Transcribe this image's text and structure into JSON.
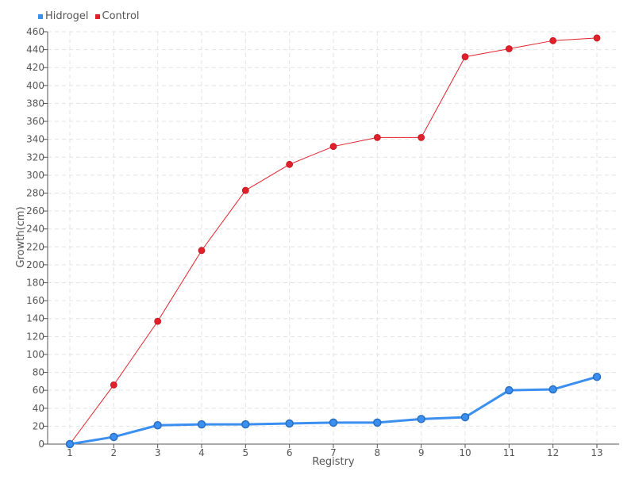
{
  "chart_data": {
    "type": "line",
    "xlabel": "Registry",
    "ylabel": "Growth(cm)",
    "x": [
      1,
      2,
      3,
      4,
      5,
      6,
      7,
      8,
      9,
      10,
      11,
      12,
      13
    ],
    "ylim": [
      0,
      460
    ],
    "ytick_step": 20,
    "grid": true,
    "legend_position": "top-left",
    "series": [
      {
        "name": "Hidrogel",
        "color": "#3b8ff0",
        "values": [
          0,
          8,
          21,
          22,
          22,
          23,
          24,
          24,
          28,
          30,
          60,
          61,
          75
        ]
      },
      {
        "name": "Control",
        "color": "#e0202a",
        "values": [
          0,
          66,
          137,
          216,
          283,
          312,
          332,
          342,
          342,
          432,
          441,
          450,
          453
        ]
      }
    ]
  }
}
